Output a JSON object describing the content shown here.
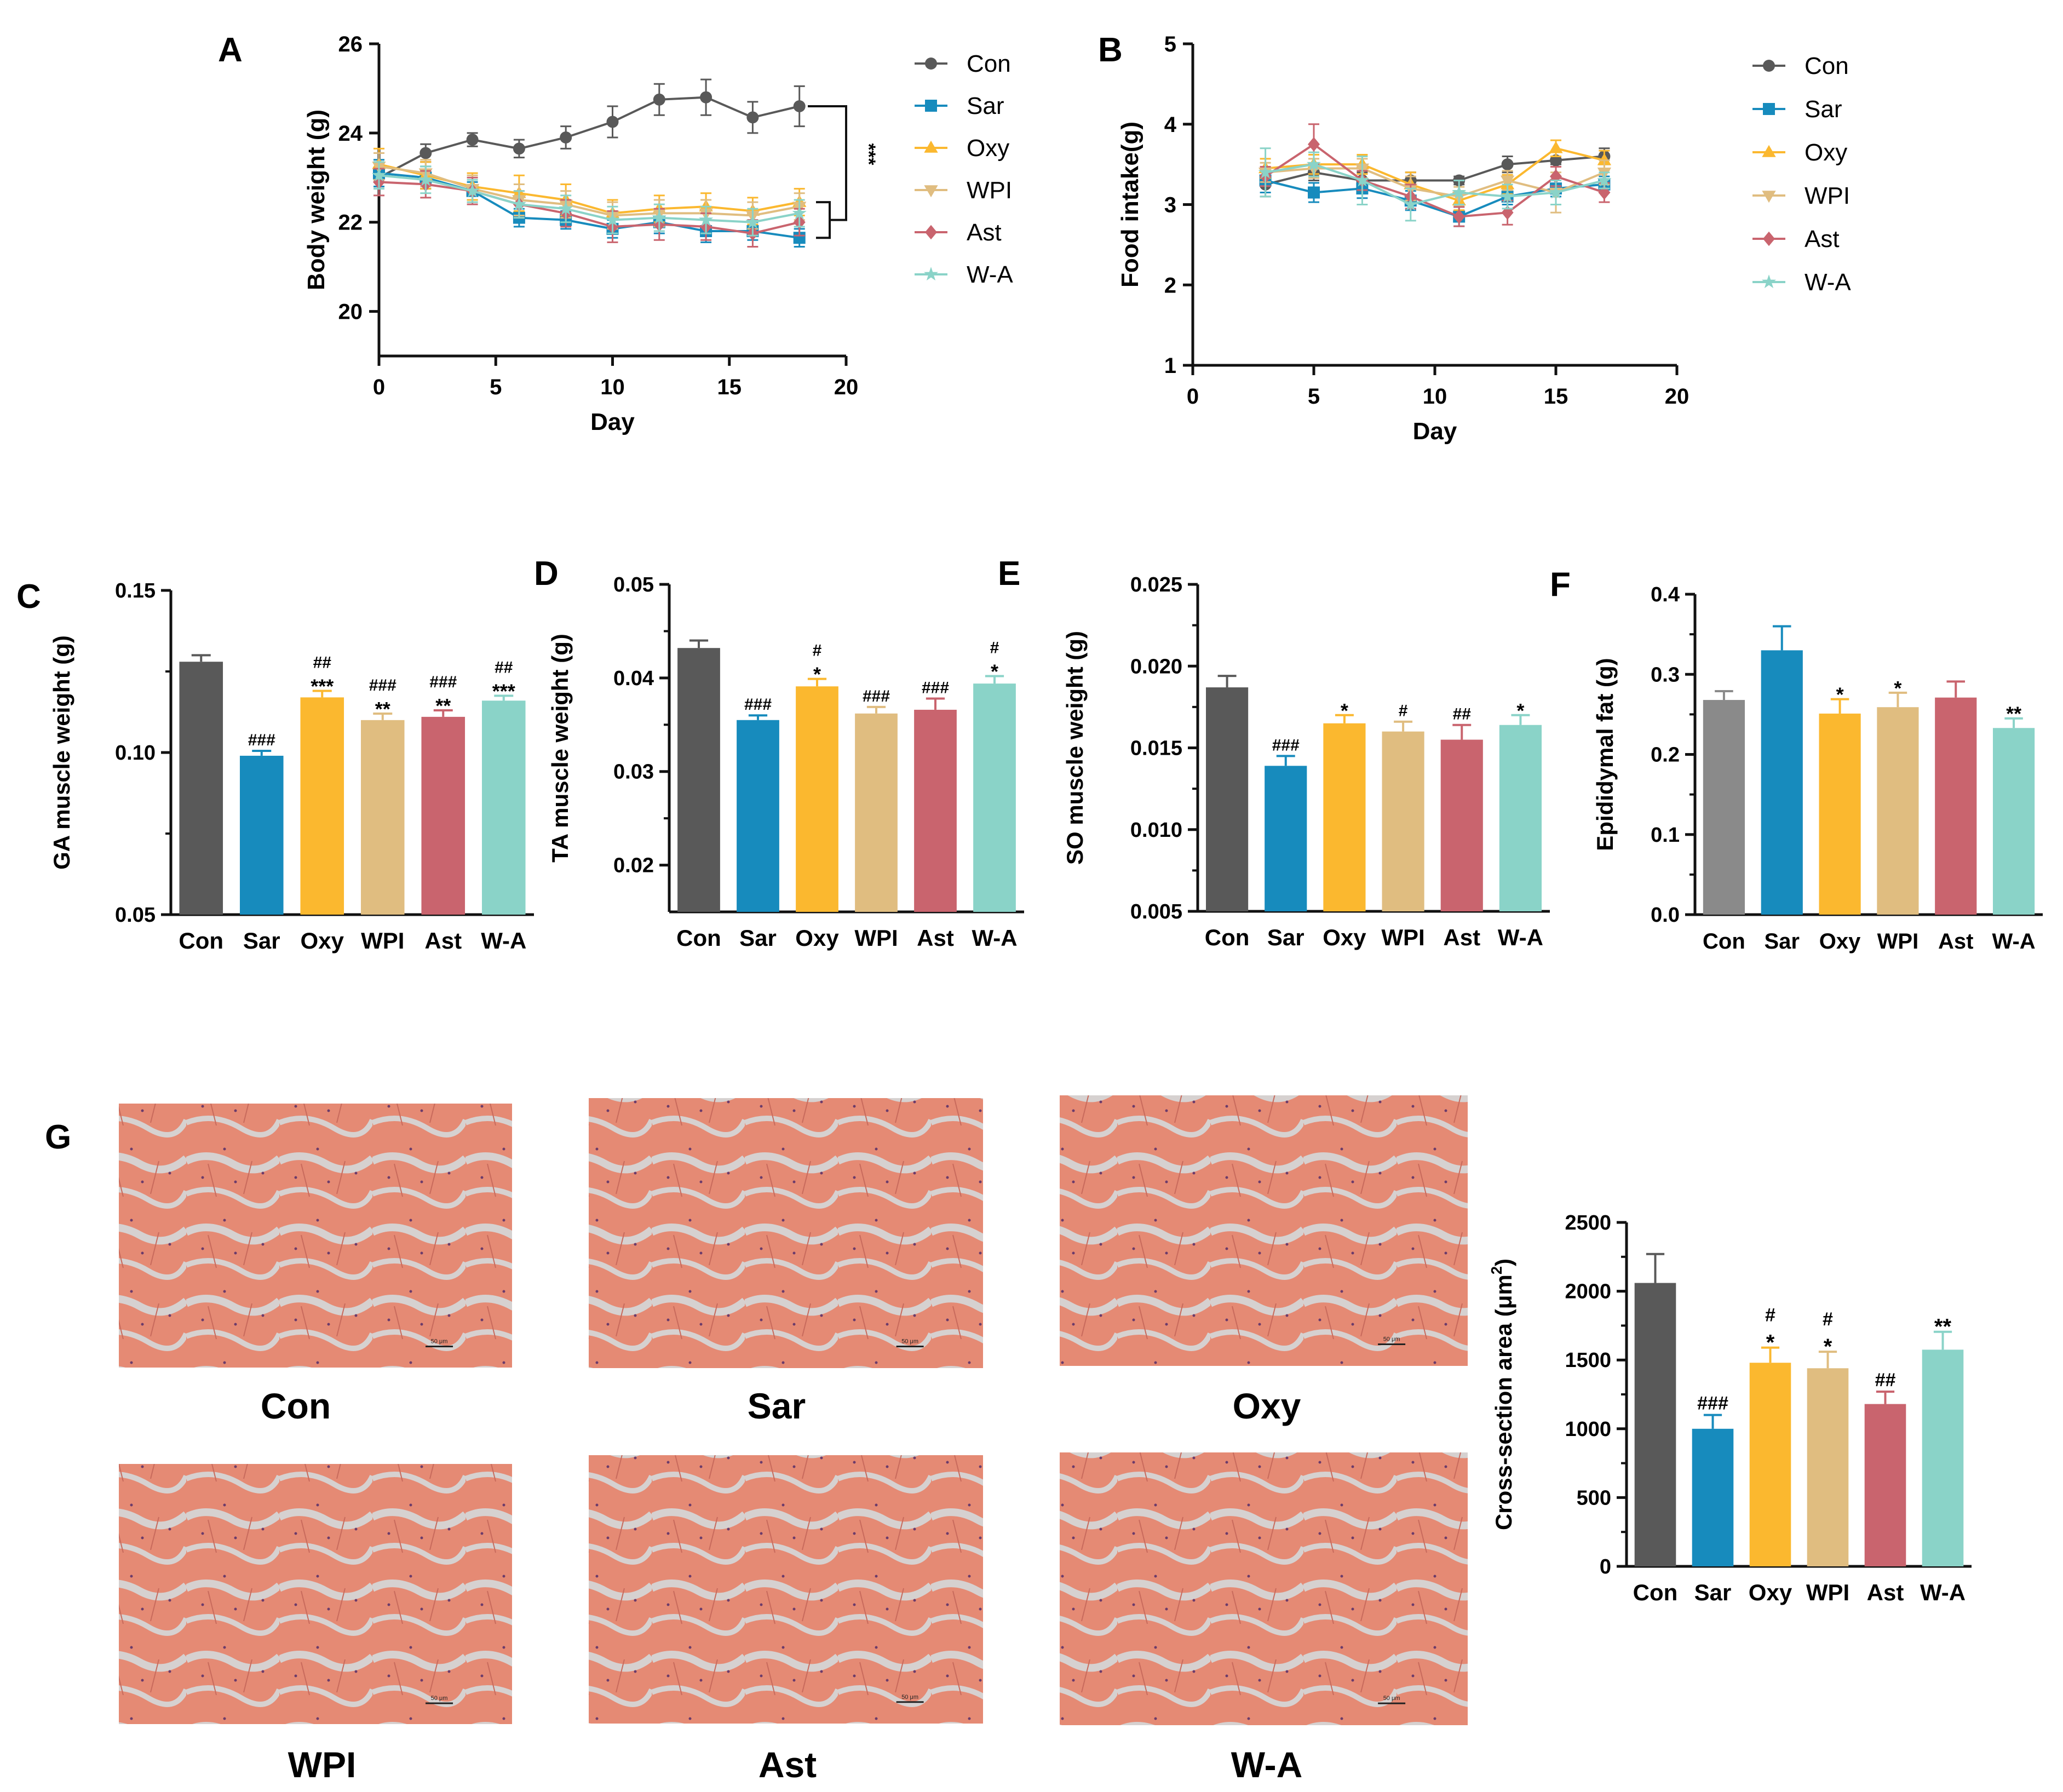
{
  "colors": {
    "Con": "#595959",
    "Sar": "#178bbd",
    "Oxy": "#fbb82f",
    "WPI": "#e0bd80",
    "Ast": "#c9646e",
    "W-A": "#8ad3c8",
    "Con_fat": "#8a8a8a",
    "axis": "#111111",
    "tissue_fiber": "#e27d66",
    "tissue_gap": "#d6d1d0"
  },
  "panels": {
    "A": "A",
    "B": "B",
    "C": "C",
    "D": "D",
    "E": "E",
    "F": "F",
    "G": "G"
  },
  "chart_data": [
    {
      "id": "A",
      "type": "line",
      "xlabel": "Day",
      "ylabel": "Body weight (g)",
      "xlim": [
        0,
        20
      ],
      "ylim": [
        19,
        26
      ],
      "xticks": [
        0,
        5,
        10,
        15,
        20
      ],
      "yticks": [
        20,
        22,
        24,
        26
      ],
      "x": [
        0,
        2,
        4,
        6,
        8,
        10,
        12,
        14,
        16,
        18
      ],
      "series": [
        {
          "name": "Con",
          "marker": "circle",
          "values": [
            23.0,
            23.55,
            23.85,
            23.65,
            23.9,
            24.25,
            24.75,
            24.8,
            24.35,
            24.6
          ],
          "err": [
            0.2,
            0.2,
            0.15,
            0.2,
            0.25,
            0.35,
            0.35,
            0.4,
            0.35,
            0.45
          ]
        },
        {
          "name": "Sar",
          "marker": "square",
          "values": [
            23.1,
            23.0,
            22.7,
            22.1,
            22.05,
            21.85,
            22.0,
            21.8,
            21.8,
            21.65
          ],
          "err": [
            0.3,
            0.25,
            0.2,
            0.2,
            0.2,
            0.2,
            0.25,
            0.25,
            0.2,
            0.2
          ]
        },
        {
          "name": "Oxy",
          "marker": "triangle-up",
          "values": [
            23.3,
            23.05,
            22.8,
            22.65,
            22.5,
            22.2,
            22.3,
            22.35,
            22.25,
            22.45
          ],
          "err": [
            0.35,
            0.3,
            0.3,
            0.4,
            0.35,
            0.3,
            0.3,
            0.3,
            0.3,
            0.3
          ]
        },
        {
          "name": "WPI",
          "marker": "triangle-down",
          "values": [
            23.25,
            23.1,
            22.75,
            22.5,
            22.4,
            22.15,
            22.2,
            22.2,
            22.15,
            22.35
          ],
          "err": [
            0.3,
            0.3,
            0.3,
            0.35,
            0.3,
            0.3,
            0.3,
            0.3,
            0.3,
            0.3
          ]
        },
        {
          "name": "Ast",
          "marker": "diamond",
          "values": [
            22.9,
            22.85,
            22.7,
            22.4,
            22.2,
            21.9,
            21.95,
            21.9,
            21.75,
            22.0
          ],
          "err": [
            0.3,
            0.3,
            0.3,
            0.3,
            0.3,
            0.35,
            0.35,
            0.3,
            0.3,
            0.3
          ]
        },
        {
          "name": "W-A",
          "marker": "star",
          "values": [
            23.05,
            22.95,
            22.7,
            22.4,
            22.3,
            22.05,
            22.1,
            22.05,
            22.0,
            22.2
          ],
          "err": [
            0.3,
            0.3,
            0.25,
            0.3,
            0.3,
            0.3,
            0.3,
            0.3,
            0.3,
            0.3
          ]
        }
      ],
      "annotation": "***"
    },
    {
      "id": "B",
      "type": "line",
      "xlabel": "Day",
      "ylabel": "Food intake(g)",
      "xlim": [
        0,
        20
      ],
      "ylim": [
        1,
        5
      ],
      "xticks": [
        0,
        5,
        10,
        15,
        20
      ],
      "yticks": [
        1,
        2,
        3,
        4,
        5
      ],
      "x": [
        3,
        5,
        7,
        9,
        11,
        13,
        15,
        17
      ],
      "series": [
        {
          "name": "Con",
          "marker": "circle",
          "values": [
            3.25,
            3.4,
            3.3,
            3.3,
            3.3,
            3.5,
            3.55,
            3.6
          ],
          "err": [
            0.15,
            0.1,
            0.1,
            0.1,
            0.05,
            0.1,
            0.05,
            0.1
          ]
        },
        {
          "name": "Sar",
          "marker": "square",
          "values": [
            3.3,
            3.15,
            3.2,
            3.05,
            2.85,
            3.1,
            3.2,
            3.25
          ],
          "err": [
            0.15,
            0.12,
            0.12,
            0.12,
            0.12,
            0.1,
            0.1,
            0.1
          ]
        },
        {
          "name": "Oxy",
          "marker": "triangle-up",
          "values": [
            3.45,
            3.5,
            3.5,
            3.25,
            3.05,
            3.25,
            3.7,
            3.55
          ],
          "err": [
            0.12,
            0.12,
            0.12,
            0.15,
            0.12,
            0.12,
            0.1,
            0.12
          ]
        },
        {
          "name": "WPI",
          "marker": "triangle-down",
          "values": [
            3.4,
            3.45,
            3.45,
            3.2,
            3.1,
            3.3,
            3.15,
            3.4
          ],
          "err": [
            0.12,
            0.12,
            0.12,
            0.15,
            0.12,
            0.12,
            0.25,
            0.15
          ]
        },
        {
          "name": "Ast",
          "marker": "diamond",
          "values": [
            3.35,
            3.75,
            3.3,
            3.1,
            2.85,
            2.9,
            3.35,
            3.15
          ],
          "err": [
            0.12,
            0.25,
            0.12,
            0.15,
            0.12,
            0.15,
            0.12,
            0.12
          ]
        },
        {
          "name": "W-A",
          "marker": "star",
          "values": [
            3.4,
            3.5,
            3.3,
            3.0,
            3.15,
            3.1,
            3.15,
            3.3
          ],
          "err": [
            0.3,
            0.15,
            0.3,
            0.2,
            0.15,
            0.15,
            0.15,
            0.1
          ]
        }
      ]
    },
    {
      "id": "C",
      "type": "bar",
      "ylabel": "GA muscle weight (g)",
      "ylim": [
        0.05,
        0.15
      ],
      "yticks": [
        0.05,
        0.1,
        0.15
      ],
      "ytick_labels": [
        "0.05",
        "0.10",
        "0.15"
      ],
      "categories": [
        "Con",
        "Sar",
        "Oxy",
        "WPI",
        "Ast",
        "W-A"
      ],
      "values": [
        0.128,
        0.099,
        0.117,
        0.11,
        0.111,
        0.116
      ],
      "err": [
        0.002,
        0.0015,
        0.002,
        0.002,
        0.002,
        0.0015
      ],
      "annotations": [
        [],
        [
          "###"
        ],
        [
          "##",
          "***"
        ],
        [
          "###",
          "**"
        ],
        [
          "###",
          "**"
        ],
        [
          "##",
          "***"
        ]
      ]
    },
    {
      "id": "D",
      "type": "bar",
      "ylabel": "TA muscle weight (g)",
      "ylim": [
        0.015,
        0.05
      ],
      "yticks": [
        0.02,
        0.03,
        0.04,
        0.05
      ],
      "ytick_labels": [
        "0.02",
        "0.03",
        "0.04",
        "0.05"
      ],
      "categories": [
        "Con",
        "Sar",
        "Oxy",
        "WPI",
        "Ast",
        "W-A"
      ],
      "values": [
        0.0432,
        0.0355,
        0.0391,
        0.0362,
        0.0366,
        0.0394
      ],
      "err": [
        0.0008,
        0.0005,
        0.0008,
        0.0007,
        0.0012,
        0.0008
      ],
      "annotations": [
        [],
        [
          "###"
        ],
        [
          "#",
          "*"
        ],
        [
          "###"
        ],
        [
          "###"
        ],
        [
          "#",
          "*"
        ]
      ]
    },
    {
      "id": "E",
      "type": "bar",
      "ylabel": "SO muscle weight (g)",
      "ylim": [
        0.005,
        0.025
      ],
      "yticks": [
        0.005,
        0.01,
        0.015,
        0.02,
        0.025
      ],
      "ytick_labels": [
        "0.005",
        "0.010",
        "0.015",
        "0.020",
        "0.025"
      ],
      "categories": [
        "Con",
        "Sar",
        "Oxy",
        "WPI",
        "Ast",
        "W-A"
      ],
      "values": [
        0.0187,
        0.0139,
        0.0165,
        0.016,
        0.0155,
        0.0164
      ],
      "err": [
        0.0007,
        0.0006,
        0.0005,
        0.0006,
        0.0009,
        0.0006
      ],
      "annotations": [
        [],
        [
          "###"
        ],
        [
          "*"
        ],
        [
          "#"
        ],
        [
          "##"
        ],
        [
          "*"
        ]
      ]
    },
    {
      "id": "F",
      "type": "bar",
      "ylabel": "Epididymal fat (g)",
      "ylim": [
        0,
        0.4
      ],
      "yticks": [
        0,
        0.1,
        0.2,
        0.3,
        0.4
      ],
      "ytick_labels": [
        "0.0",
        "0.1",
        "0.2",
        "0.3",
        "0.4"
      ],
      "categories": [
        "Con",
        "Sar",
        "Oxy",
        "WPI",
        "Ast",
        "W-A"
      ],
      "values": [
        0.268,
        0.33,
        0.251,
        0.259,
        0.271,
        0.233
      ],
      "err": [
        0.011,
        0.03,
        0.018,
        0.018,
        0.02,
        0.012
      ],
      "annotations": [
        [],
        [],
        [
          "*"
        ],
        [
          "*"
        ],
        [],
        [
          "**"
        ]
      ]
    },
    {
      "id": "G",
      "type": "bar",
      "ylabel_main": "Cross-section area (μm",
      "ylabel_sup": "2",
      "ylabel_end": ")",
      "ylim": [
        0,
        2500
      ],
      "yticks": [
        0,
        500,
        1000,
        1500,
        2000,
        2500
      ],
      "ytick_labels": [
        "0",
        "500",
        "1000",
        "1500",
        "2000",
        "2500"
      ],
      "categories": [
        "Con",
        "Sar",
        "Oxy",
        "WPI",
        "Ast",
        "W-A"
      ],
      "values": [
        2060,
        1000,
        1480,
        1440,
        1180,
        1575
      ],
      "err": [
        210,
        100,
        110,
        120,
        90,
        130
      ],
      "annotations": [
        [],
        [
          "###"
        ],
        [
          "#",
          "*"
        ],
        [
          "#",
          "*"
        ],
        [
          "##"
        ],
        [
          "**"
        ]
      ]
    }
  ],
  "micrographs": {
    "labels": [
      "Con",
      "Sar",
      "Oxy",
      "WPI",
      "Ast",
      "W-A"
    ],
    "scale_bar": "50 μm"
  }
}
